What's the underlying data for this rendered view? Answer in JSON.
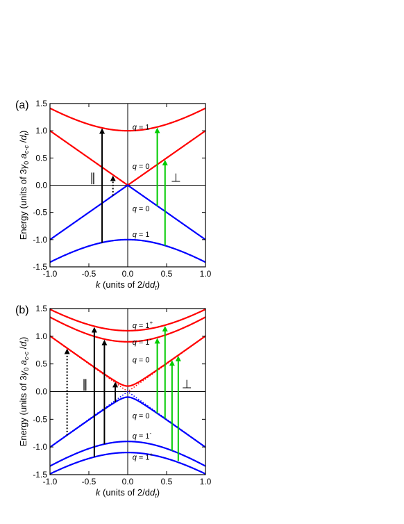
{
  "chart_data": [
    {
      "panel_label": "(a)",
      "type": "line",
      "xlabel_prefix": "k",
      "xlabel_rest": " (units of 2/d",
      "xlabel_sub": "t",
      "xlabel_end": ")",
      "ylabel": "Energy (units of 3γ0 ac-c /dt)",
      "xlim": [
        -1.0,
        1.0
      ],
      "ylim": [
        -1.5,
        1.5
      ],
      "xticks": [
        "-1.0",
        "-0.5",
        "0.0",
        "0.5",
        "1.0"
      ],
      "yticks": [
        "-1.5",
        "-1.0",
        "-0.5",
        "0.0",
        "0.5",
        "1.0",
        "1.5"
      ],
      "series": [
        {
          "q": "1",
          "color": "#ff0000",
          "sign": 1,
          "gap": 1.0,
          "style": "solid"
        },
        {
          "q": "0",
          "color": "#ff0000",
          "sign": 1,
          "gap": 0.0,
          "style": "solid"
        },
        {
          "q": "0",
          "color": "#0000ff",
          "sign": -1,
          "gap": 0.0,
          "style": "solid"
        },
        {
          "q": "1",
          "color": "#0000ff",
          "sign": -1,
          "gap": 1.0,
          "style": "solid"
        }
      ],
      "q_labels": [
        {
          "x": 0.06,
          "y": 1.07,
          "q": "1",
          "sup": ""
        },
        {
          "x": 0.06,
          "y": 0.35,
          "q": "0",
          "sup": ""
        },
        {
          "x": 0.06,
          "y": -0.43,
          "q": "0",
          "sup": ""
        },
        {
          "x": 0.06,
          "y": -0.9,
          "q": "1",
          "sup": ""
        }
      ],
      "arrows": [
        {
          "x": -0.33,
          "y1": -1.06,
          "y2": 1.06,
          "color": "#000000",
          "dotted": false
        },
        {
          "x": -0.19,
          "y1": -0.19,
          "y2": 0.19,
          "color": "#000000",
          "dotted": true
        },
        {
          "x": 0.38,
          "y1": -0.38,
          "y2": 1.07,
          "color": "#00cc00",
          "dotted": false
        },
        {
          "x": 0.48,
          "y1": -1.11,
          "y2": 0.48,
          "color": "#00cc00",
          "dotted": false
        }
      ],
      "pol_labels": [
        {
          "x": -0.45,
          "y": 0.14,
          "text": "∥"
        },
        {
          "x": 0.62,
          "y": 0.14,
          "text": "⊥"
        }
      ]
    },
    {
      "panel_label": "(b)",
      "type": "line",
      "xlabel_prefix": "k",
      "xlabel_rest": " (units of 2/d",
      "xlabel_sub": "t",
      "xlabel_end": ")",
      "ylabel": "Energy (units of 3γ0 ac-c /dt)",
      "xlim": [
        -1.0,
        1.0
      ],
      "ylim": [
        -1.5,
        1.5
      ],
      "xticks": [
        "-1.0",
        "-0.5",
        "0.0",
        "0.5",
        "1.0"
      ],
      "yticks": [
        "-1.5",
        "-1.0",
        "-0.5",
        "0.0",
        "0.5",
        "1.0",
        "1.5"
      ],
      "series": [
        {
          "q": "1+",
          "color": "#ff0000",
          "sign": 1,
          "gap": 1.1,
          "style": "solid"
        },
        {
          "q": "1-",
          "color": "#ff0000",
          "sign": 1,
          "gap": 0.9,
          "style": "solid"
        },
        {
          "q": "0",
          "color": "#ff0000",
          "sign": 1,
          "gap": 0.1,
          "style": "solid"
        },
        {
          "q": "0",
          "color": "#ff0000",
          "sign": 1,
          "gap": 0.0,
          "style": "dotted"
        },
        {
          "q": "0",
          "color": "#0000ff",
          "sign": -1,
          "gap": 0.1,
          "style": "solid"
        },
        {
          "q": "0",
          "color": "#0000ff",
          "sign": -1,
          "gap": 0.0,
          "style": "dotted"
        },
        {
          "q": "1-",
          "color": "#0000ff",
          "sign": -1,
          "gap": 0.9,
          "style": "solid"
        },
        {
          "q": "1+",
          "color": "#0000ff",
          "sign": -1,
          "gap": 1.1,
          "style": "solid"
        }
      ],
      "q_labels": [
        {
          "x": 0.06,
          "y": 1.2,
          "q": "1",
          "sup": "+"
        },
        {
          "x": 0.06,
          "y": 0.9,
          "q": "1",
          "sup": "-"
        },
        {
          "x": 0.06,
          "y": 0.58,
          "q": "0",
          "sup": ""
        },
        {
          "x": 0.06,
          "y": -0.43,
          "q": "0",
          "sup": ""
        },
        {
          "x": 0.06,
          "y": -0.8,
          "q": "1",
          "sup": "-"
        },
        {
          "x": 0.06,
          "y": -1.18,
          "q": "1",
          "sup": "+"
        }
      ],
      "arrows": [
        {
          "x": -0.78,
          "y1": -0.79,
          "y2": 0.79,
          "color": "#000000",
          "dotted": true
        },
        {
          "x": -0.43,
          "y1": -1.18,
          "y2": 1.18,
          "color": "#000000",
          "dotted": false
        },
        {
          "x": -0.3,
          "y1": -0.95,
          "y2": 0.95,
          "color": "#000000",
          "dotted": false
        },
        {
          "x": -0.16,
          "y1": -0.19,
          "y2": 0.19,
          "color": "#000000",
          "dotted": false
        },
        {
          "x": 0.38,
          "y1": -0.39,
          "y2": 0.98,
          "color": "#00cc00",
          "dotted": false
        },
        {
          "x": 0.48,
          "y1": -0.49,
          "y2": 1.2,
          "color": "#00cc00",
          "dotted": false
        },
        {
          "x": 0.57,
          "y1": -1.07,
          "y2": 0.58,
          "color": "#00cc00",
          "dotted": false
        },
        {
          "x": 0.65,
          "y1": -1.25,
          "y2": 0.66,
          "color": "#00cc00",
          "dotted": false
        }
      ],
      "pol_labels": [
        {
          "x": -0.55,
          "y": 0.14,
          "text": "∥"
        },
        {
          "x": 0.76,
          "y": 0.14,
          "text": "⊥"
        }
      ]
    }
  ]
}
